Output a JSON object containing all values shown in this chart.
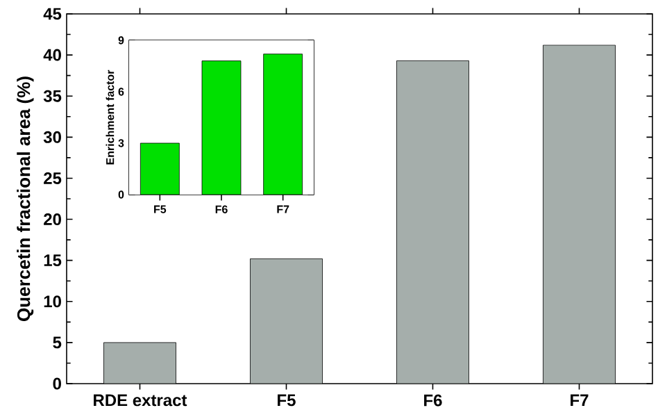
{
  "chart_data": [
    {
      "type": "bar",
      "ylabel": "Quercetin fractional area (%)",
      "categories": [
        "RDE extract",
        "F5",
        "F6",
        "F7"
      ],
      "values": [
        5.0,
        15.2,
        39.3,
        41.2
      ],
      "color": "#a5aeab",
      "ylim": [
        0,
        45
      ],
      "yticks": [
        0,
        5,
        10,
        15,
        20,
        25,
        30,
        35,
        40,
        45
      ],
      "grid": false
    },
    {
      "type": "bar",
      "ylabel": "Enrichment factor",
      "categories": [
        "F5",
        "F6",
        "F7"
      ],
      "values": [
        3.0,
        7.8,
        8.2
      ],
      "color": "#00e000",
      "ylim": [
        0,
        9
      ],
      "yticks": [
        0,
        3,
        6,
        9
      ],
      "grid": false
    }
  ]
}
